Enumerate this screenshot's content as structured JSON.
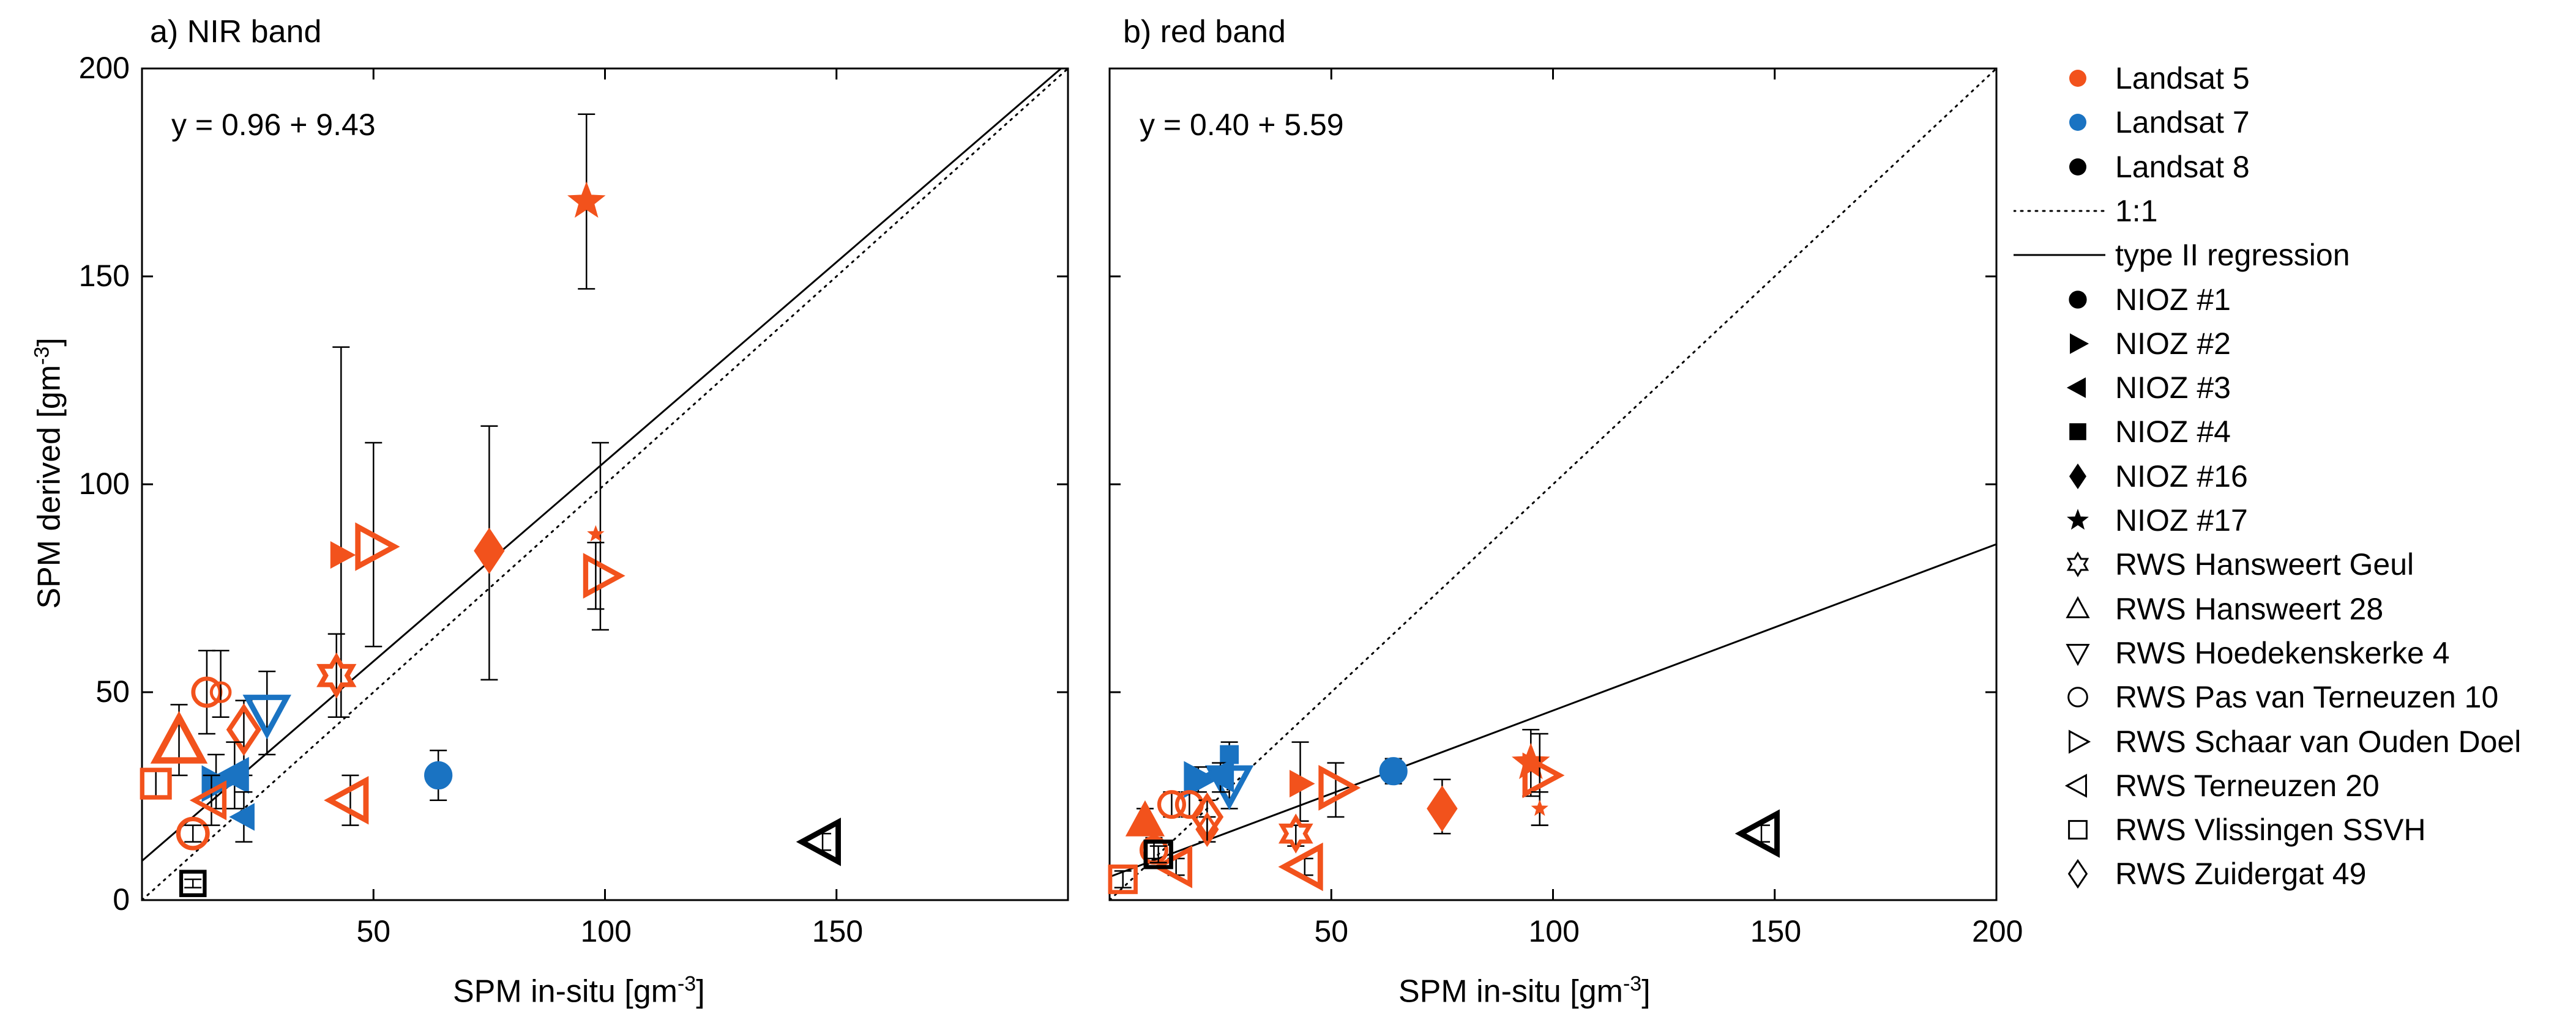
{
  "colors": {
    "landsat5": "#f2521c",
    "landsat7": "#1a73c2",
    "landsat8": "#000000"
  },
  "legend": {
    "items": [
      {
        "label": "Landsat 5",
        "kind": "dot",
        "color": "landsat5"
      },
      {
        "label": "Landsat 7",
        "kind": "dot",
        "color": "landsat7"
      },
      {
        "label": "Landsat 8",
        "kind": "dot",
        "color": "landsat8"
      },
      {
        "label": "1:1",
        "kind": "dotted-line"
      },
      {
        "label": "type II regression",
        "kind": "solid-line"
      },
      {
        "label": "NIOZ #1",
        "kind": "marker",
        "marker": "circle-filled"
      },
      {
        "label": "NIOZ #2",
        "kind": "marker",
        "marker": "triangle-right-filled"
      },
      {
        "label": "NIOZ #3",
        "kind": "marker",
        "marker": "triangle-left-filled"
      },
      {
        "label": "NIOZ #4",
        "kind": "marker",
        "marker": "square-filled"
      },
      {
        "label": "NIOZ #16",
        "kind": "marker",
        "marker": "diamond-filled"
      },
      {
        "label": "NIOZ #17",
        "kind": "marker",
        "marker": "star-filled"
      },
      {
        "label": "RWS Hansweert Geul",
        "kind": "marker",
        "marker": "hexagram-open"
      },
      {
        "label": "RWS Hansweert 28",
        "kind": "marker",
        "marker": "triangle-up-open"
      },
      {
        "label": "RWS Hoedekenskerke 4",
        "kind": "marker",
        "marker": "triangle-down-open"
      },
      {
        "label": "RWS Pas van Terneuzen 10",
        "kind": "marker",
        "marker": "circle-open"
      },
      {
        "label": "RWS Schaar van Ouden Doel",
        "kind": "marker",
        "marker": "triangle-right-open"
      },
      {
        "label": "RWS Terneuzen 20",
        "kind": "marker",
        "marker": "triangle-left-open"
      },
      {
        "label": "RWS Vlissingen SSVH",
        "kind": "marker",
        "marker": "square-open"
      },
      {
        "label": "RWS Zuidergat 49",
        "kind": "marker",
        "marker": "diamond-open"
      }
    ]
  },
  "chart_data": [
    {
      "type": "scatter",
      "title": "a) NIR band",
      "xlabel": "SPM in-situ [gm",
      "xlabel_sup": "-3",
      "xlabel_end": "]",
      "ylabel": "SPM derived [gm",
      "ylabel_sup": "-3",
      "ylabel_end": "]",
      "xlim": [
        0,
        200
      ],
      "ylim": [
        0,
        200
      ],
      "xticks": [
        50,
        100,
        150
      ],
      "yticks": [
        0,
        50,
        100,
        150,
        200
      ],
      "equation": "y = 0.96 + 9.43",
      "regression": {
        "intercept": 9.43,
        "slope": 0.96
      },
      "one_to_one": true,
      "points": [
        {
          "x": 96,
          "y": 168,
          "ylo": 147,
          "yhi": 189,
          "marker": "star-filled",
          "color": "landsat5",
          "size": 30
        },
        {
          "x": 43,
          "y": 83,
          "ylo": 44,
          "yhi": 133,
          "marker": "triangle-right-filled",
          "color": "landsat5",
          "size": 22
        },
        {
          "x": 50,
          "y": 85,
          "ylo": 61,
          "yhi": 110,
          "marker": "triangle-right-open",
          "color": "landsat5",
          "size": 34
        },
        {
          "x": 75,
          "y": 84,
          "ylo": 53,
          "yhi": 114,
          "marker": "diamond-filled",
          "color": "landsat5",
          "size": 30
        },
        {
          "x": 99,
          "y": 78,
          "ylo": 65,
          "yhi": 110,
          "marker": "triangle-right-open",
          "color": "landsat5",
          "size": 32
        },
        {
          "x": 98,
          "y": 88,
          "ylo": 70,
          "yhi": 86,
          "marker": "star-filled",
          "color": "landsat5",
          "size": 12
        },
        {
          "x": 42,
          "y": 54,
          "ylo": 44,
          "yhi": 64,
          "marker": "hexagram-open",
          "color": "landsat5",
          "size": 30
        },
        {
          "x": 14,
          "y": 50,
          "ylo": 40,
          "yhi": 60,
          "marker": "circle-open",
          "color": "landsat5",
          "size": 26
        },
        {
          "x": 17,
          "y": 50,
          "ylo": 44,
          "yhi": 60,
          "marker": "circle-open",
          "color": "landsat5",
          "size": 18
        },
        {
          "x": 8,
          "y": 38,
          "ylo": 30,
          "yhi": 47,
          "marker": "triangle-up-open",
          "color": "landsat5",
          "size": 40
        },
        {
          "x": 22,
          "y": 41,
          "ylo": 30,
          "yhi": 48,
          "marker": "diamond-open",
          "color": "landsat5",
          "size": 30
        },
        {
          "x": 27,
          "y": 45,
          "ylo": 35,
          "yhi": 55,
          "marker": "triangle-down-open",
          "color": "landsat7",
          "size": 34
        },
        {
          "x": 20,
          "y": 30,
          "ylo": 22,
          "yhi": 38,
          "marker": "triangle-left-filled",
          "color": "landsat7",
          "size": 30
        },
        {
          "x": 16,
          "y": 28,
          "ylo": 22,
          "yhi": 35,
          "marker": "triangle-right-filled",
          "color": "landsat7",
          "size": 30
        },
        {
          "x": 22,
          "y": 20,
          "ylo": 14,
          "yhi": 26,
          "marker": "triangle-left-filled",
          "color": "landsat7",
          "size": 22
        },
        {
          "x": 64,
          "y": 30,
          "ylo": 24,
          "yhi": 36,
          "marker": "circle-filled",
          "color": "landsat7",
          "size": 26
        },
        {
          "x": 3,
          "y": 28,
          "ylo": 25,
          "yhi": 31,
          "marker": "square-open",
          "color": "landsat5",
          "size": 28
        },
        {
          "x": 11,
          "y": 16,
          "ylo": 14,
          "yhi": 18,
          "marker": "circle-open",
          "color": "landsat5",
          "size": 28
        },
        {
          "x": 15,
          "y": 24,
          "ylo": 18,
          "yhi": 30,
          "marker": "triangle-left-open",
          "color": "landsat5",
          "size": 28
        },
        {
          "x": 45,
          "y": 24,
          "ylo": 18,
          "yhi": 30,
          "marker": "triangle-left-open",
          "color": "landsat5",
          "size": 34
        },
        {
          "x": 11,
          "y": 4,
          "ylo": 3,
          "yhi": 5,
          "marker": "square-open",
          "color": "landsat8",
          "size": 24
        },
        {
          "x": 147,
          "y": 14,
          "ylo": 12,
          "yhi": 16,
          "marker": "triangle-left-open",
          "color": "landsat8",
          "size": 34
        }
      ]
    },
    {
      "type": "scatter",
      "title": "b) red band",
      "xlabel": "SPM in-situ [gm",
      "xlabel_sup": "-3",
      "xlabel_end": "]",
      "xlim": [
        0,
        200
      ],
      "ylim": [
        0,
        200
      ],
      "xticks": [
        50,
        100,
        150,
        200
      ],
      "yticks": [],
      "equation": "y = 0.40 + 5.59",
      "regression": {
        "intercept": 5.59,
        "slope": 0.4
      },
      "one_to_one": true,
      "points": [
        {
          "x": 95,
          "y": 33,
          "ylo": 25,
          "yhi": 41,
          "marker": "star-filled",
          "color": "landsat5",
          "size": 30
        },
        {
          "x": 97,
          "y": 30,
          "ylo": 18,
          "yhi": 40,
          "marker": "triangle-right-open",
          "color": "landsat5",
          "size": 32
        },
        {
          "x": 97,
          "y": 22,
          "ylo": 18,
          "yhi": 26,
          "marker": "star-filled",
          "color": "landsat5",
          "size": 12
        },
        {
          "x": 75,
          "y": 22,
          "ylo": 16,
          "yhi": 29,
          "marker": "diamond-filled",
          "color": "landsat5",
          "size": 30
        },
        {
          "x": 64,
          "y": 31,
          "ylo": 28,
          "yhi": 34,
          "marker": "circle-filled",
          "color": "landsat7",
          "size": 26
        },
        {
          "x": 51,
          "y": 27,
          "ylo": 20,
          "yhi": 33,
          "marker": "triangle-right-open",
          "color": "landsat5",
          "size": 32
        },
        {
          "x": 43,
          "y": 28,
          "ylo": 19,
          "yhi": 38,
          "marker": "triangle-right-filled",
          "color": "landsat5",
          "size": 22
        },
        {
          "x": 42,
          "y": 16,
          "ylo": 13,
          "yhi": 18,
          "marker": "hexagram-open",
          "color": "landsat5",
          "size": 26
        },
        {
          "x": 44,
          "y": 8,
          "ylo": 6,
          "yhi": 10,
          "marker": "triangle-left-open",
          "color": "landsat5",
          "size": 34
        },
        {
          "x": 27,
          "y": 35,
          "ylo": 32,
          "yhi": 38,
          "marker": "square-filled",
          "color": "landsat7",
          "size": 18
        },
        {
          "x": 27,
          "y": 28,
          "ylo": 22,
          "yhi": 32,
          "marker": "triangle-down-open",
          "color": "landsat7",
          "size": 34
        },
        {
          "x": 20,
          "y": 29,
          "ylo": 26,
          "yhi": 32,
          "marker": "triangle-right-filled",
          "color": "landsat7",
          "size": 30
        },
        {
          "x": 25,
          "y": 30,
          "ylo": 26,
          "yhi": 33,
          "marker": "triangle-left-filled",
          "color": "landsat7",
          "size": 28
        },
        {
          "x": 18,
          "y": 23,
          "ylo": 20,
          "yhi": 26,
          "marker": "circle-open",
          "color": "landsat5",
          "size": 24
        },
        {
          "x": 14,
          "y": 23,
          "ylo": 20,
          "yhi": 26,
          "marker": "circle-open",
          "color": "landsat5",
          "size": 24
        },
        {
          "x": 22,
          "y": 20,
          "ylo": 16,
          "yhi": 24,
          "marker": "diamond-open",
          "color": "landsat5",
          "size": 28
        },
        {
          "x": 22,
          "y": 17,
          "ylo": 14,
          "yhi": 20,
          "marker": "diamond-open",
          "color": "landsat5",
          "size": 20
        },
        {
          "x": 8,
          "y": 19,
          "ylo": 16,
          "yhi": 22,
          "marker": "triangle-up-filled",
          "color": "landsat5",
          "size": 32
        },
        {
          "x": 10,
          "y": 12,
          "ylo": 10,
          "yhi": 15,
          "marker": "circle-open",
          "color": "landsat5",
          "size": 24
        },
        {
          "x": 15,
          "y": 8,
          "ylo": 6,
          "yhi": 10,
          "marker": "triangle-left-open",
          "color": "landsat5",
          "size": 30
        },
        {
          "x": 3,
          "y": 5,
          "ylo": 3,
          "yhi": 7,
          "marker": "square-open",
          "color": "landsat5",
          "size": 26
        },
        {
          "x": 11,
          "y": 11,
          "ylo": 9,
          "yhi": 13,
          "marker": "square-open",
          "color": "landsat8",
          "size": 26
        },
        {
          "x": 147,
          "y": 16,
          "ylo": 14,
          "yhi": 18,
          "marker": "triangle-left-open",
          "color": "landsat8",
          "size": 34
        }
      ]
    }
  ]
}
